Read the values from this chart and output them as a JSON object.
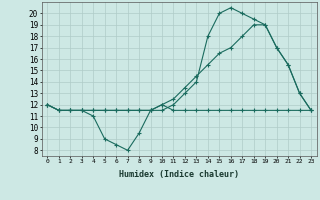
{
  "xlabel": "Humidex (Indice chaleur)",
  "background_color": "#cde8e4",
  "grid_color": "#b0ccc8",
  "line_color": "#1a6b5e",
  "xlim": [
    -0.5,
    23.5
  ],
  "ylim": [
    7.5,
    21.0
  ],
  "xticks": [
    0,
    1,
    2,
    3,
    4,
    5,
    6,
    7,
    8,
    9,
    10,
    11,
    12,
    13,
    14,
    15,
    16,
    17,
    18,
    19,
    20,
    21,
    22,
    23
  ],
  "yticks": [
    8,
    9,
    10,
    11,
    12,
    13,
    14,
    15,
    16,
    17,
    18,
    19,
    20
  ],
  "series1_x": [
    0,
    1,
    2,
    3,
    4,
    5,
    6,
    7,
    8,
    9,
    10,
    11,
    12,
    13,
    14,
    15,
    16,
    17,
    18,
    19,
    20,
    21,
    22,
    23
  ],
  "series1_y": [
    12,
    11.5,
    11.5,
    11.5,
    11,
    9,
    8.5,
    8,
    9.5,
    11.5,
    12,
    11.5,
    11.5,
    11.5,
    11.5,
    11.5,
    11.5,
    11.5,
    11.5,
    11.5,
    11.5,
    11.5,
    11.5,
    11.5
  ],
  "series2_x": [
    0,
    1,
    2,
    3,
    4,
    5,
    6,
    7,
    8,
    9,
    10,
    11,
    12,
    13,
    14,
    15,
    16,
    17,
    18,
    19,
    20,
    21,
    22,
    23
  ],
  "series2_y": [
    12,
    11.5,
    11.5,
    11.5,
    11.5,
    11.5,
    11.5,
    11.5,
    11.5,
    11.5,
    12,
    12.5,
    13.5,
    14.5,
    15.5,
    16.5,
    17,
    18,
    19,
    19,
    17,
    15.5,
    13,
    11.5
  ],
  "series3_x": [
    0,
    1,
    2,
    3,
    4,
    5,
    6,
    7,
    8,
    9,
    10,
    11,
    12,
    13,
    14,
    15,
    16,
    17,
    18,
    19,
    20,
    21,
    22,
    23
  ],
  "series3_y": [
    12,
    11.5,
    11.5,
    11.5,
    11.5,
    11.5,
    11.5,
    11.5,
    11.5,
    11.5,
    11.5,
    12,
    13,
    14,
    18,
    20,
    20.5,
    20,
    19.5,
    19,
    17,
    15.5,
    13,
    11.5
  ]
}
